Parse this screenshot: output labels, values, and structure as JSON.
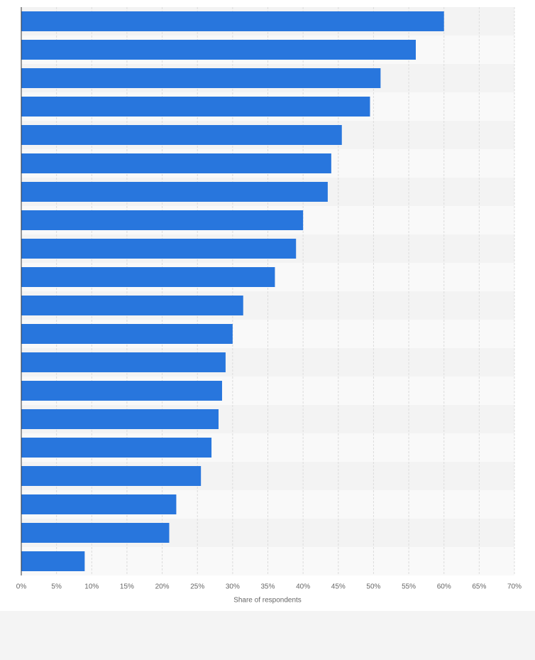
{
  "chart_data": {
    "type": "bar",
    "orientation": "horizontal",
    "xlabel": "Share of respondents",
    "categories": [
      null,
      null,
      null,
      null,
      null,
      null,
      null,
      null,
      null,
      null,
      null,
      null,
      null,
      null,
      null,
      null,
      null,
      null,
      null,
      null
    ],
    "values": [
      60,
      56,
      51,
      49.5,
      45.5,
      44,
      43.5,
      40,
      39,
      36,
      31.5,
      30,
      29,
      28.5,
      28,
      27,
      25.5,
      22,
      21,
      9
    ],
    "color": "#2876dd",
    "xlim": [
      0,
      70
    ],
    "xticks": [
      {
        "value": 0,
        "label": "0%"
      },
      {
        "value": 5,
        "label": "5%"
      },
      {
        "value": 10,
        "label": "10%"
      },
      {
        "value": 15,
        "label": "15%"
      },
      {
        "value": 20,
        "label": "20%"
      },
      {
        "value": 25,
        "label": "25%"
      },
      {
        "value": 30,
        "label": "30%"
      },
      {
        "value": 35,
        "label": "35%"
      },
      {
        "value": 40,
        "label": "40%"
      },
      {
        "value": 45,
        "label": "45%"
      },
      {
        "value": 50,
        "label": "50%"
      },
      {
        "value": 55,
        "label": "55%"
      },
      {
        "value": 60,
        "label": "60%"
      },
      {
        "value": 65,
        "label": "65%"
      },
      {
        "value": 70,
        "label": "70%"
      }
    ],
    "grid": true
  }
}
